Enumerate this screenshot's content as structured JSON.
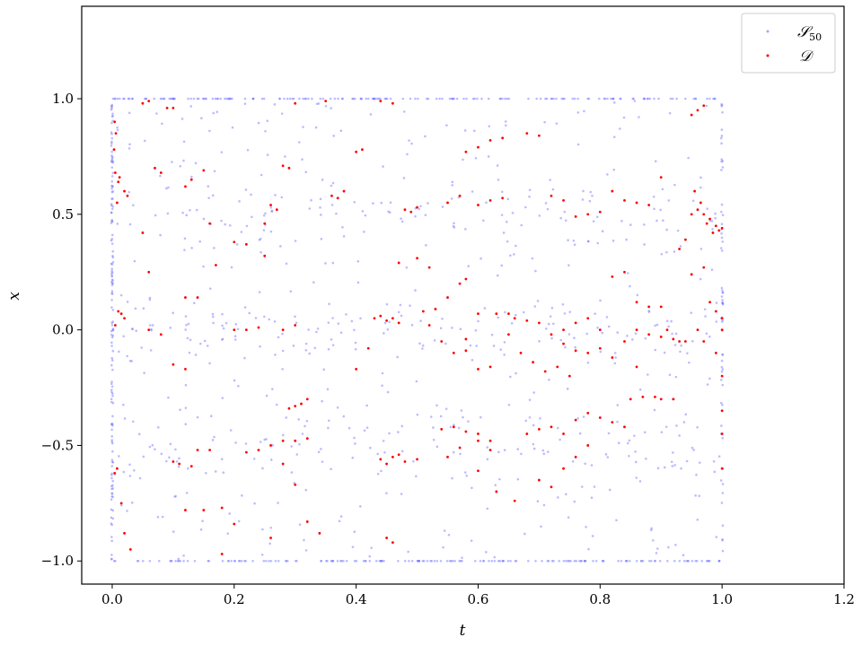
{
  "chart_data": {
    "type": "scatter",
    "title": "",
    "xlabel": "t",
    "ylabel": "x",
    "xlim": [
      -0.05,
      1.2
    ],
    "ylim": [
      -1.1,
      1.4
    ],
    "x_ticks": [
      0.0,
      0.2,
      0.4,
      0.6,
      0.8,
      1.0,
      1.2
    ],
    "x_tick_labels": [
      "0.0",
      "0.2",
      "0.4",
      "0.6",
      "0.8",
      "1.0",
      "1.2"
    ],
    "y_ticks": [
      -1.0,
      -0.5,
      0.0,
      0.5,
      1.0
    ],
    "y_tick_labels": [
      "−1.0",
      "−0.5",
      "0.0",
      "0.5",
      "1.0"
    ],
    "grid": false,
    "legend_position": "top-right",
    "series": [
      {
        "name": "S50",
        "legend_label": "𝒮",
        "legend_subscript": "50",
        "color": "#6a6aff",
        "alpha": 0.45,
        "point_groups": [
          {
            "kind": "vertical-edge",
            "x": 0.0,
            "y_range": [
              -1.0,
              1.0
            ],
            "count": 140
          },
          {
            "kind": "horizontal-edge",
            "y": 1.0,
            "x_range": [
              0.0,
              1.0
            ],
            "count": 170
          },
          {
            "kind": "horizontal-edge",
            "y": -1.0,
            "x_range": [
              0.0,
              1.0
            ],
            "count": 170
          },
          {
            "kind": "vertical-edge",
            "x": 1.0,
            "y_range": [
              -1.0,
              1.0
            ],
            "count": 60
          },
          {
            "kind": "band",
            "x_range": [
              0.0,
              1.0
            ],
            "y_center": 0.0,
            "spread": 0.06,
            "count": 120
          },
          {
            "kind": "band",
            "x_range": [
              0.0,
              1.0
            ],
            "y_center": 0.5,
            "spread": 0.08,
            "count": 90
          },
          {
            "kind": "band",
            "x_range": [
              0.0,
              1.0
            ],
            "y_center": -0.5,
            "spread": 0.08,
            "count": 90
          },
          {
            "kind": "uniform",
            "x_range": [
              0.0,
              1.0
            ],
            "y_range": [
              -1.0,
              1.0
            ],
            "count": 420
          }
        ]
      },
      {
        "name": "D",
        "legend_label": "𝒟",
        "color": "#ff0000",
        "points": [
          [
            0.005,
            0.68
          ],
          [
            0.01,
            0.64
          ],
          [
            0.012,
            0.66
          ],
          [
            0.02,
            0.6
          ],
          [
            0.025,
            0.58
          ],
          [
            0.008,
            0.55
          ],
          [
            0.004,
            0.9
          ],
          [
            0.006,
            0.85
          ],
          [
            0.003,
            0.78
          ],
          [
            0.005,
            0.02
          ],
          [
            0.01,
            0.08
          ],
          [
            0.015,
            0.07
          ],
          [
            0.02,
            0.05
          ],
          [
            0.004,
            -0.62
          ],
          [
            0.008,
            -0.6
          ],
          [
            0.015,
            -0.75
          ],
          [
            0.02,
            -0.88
          ],
          [
            0.03,
            -0.95
          ],
          [
            0.05,
            0.42
          ],
          [
            0.06,
            0.25
          ],
          [
            0.07,
            0.7
          ],
          [
            0.08,
            0.68
          ],
          [
            0.09,
            0.96
          ],
          [
            0.1,
            0.96
          ],
          [
            0.05,
            0.98
          ],
          [
            0.06,
            0.99
          ],
          [
            0.06,
            0.0
          ],
          [
            0.08,
            -0.02
          ],
          [
            0.1,
            -0.15
          ],
          [
            0.12,
            -0.17
          ],
          [
            0.12,
            0.62
          ],
          [
            0.13,
            0.65
          ],
          [
            0.15,
            0.69
          ],
          [
            0.12,
            0.14
          ],
          [
            0.14,
            0.14
          ],
          [
            0.11,
            -0.58
          ],
          [
            0.13,
            -0.59
          ],
          [
            0.14,
            -0.52
          ],
          [
            0.16,
            -0.52
          ],
          [
            0.1,
            -0.57
          ],
          [
            0.12,
            -0.78
          ],
          [
            0.15,
            -0.78
          ],
          [
            0.18,
            -0.77
          ],
          [
            0.2,
            -0.84
          ],
          [
            0.18,
            -0.97
          ],
          [
            0.16,
            0.46
          ],
          [
            0.17,
            0.28
          ],
          [
            0.2,
            0.38
          ],
          [
            0.22,
            0.37
          ],
          [
            0.2,
            0.0
          ],
          [
            0.22,
            0.0
          ],
          [
            0.24,
            0.01
          ],
          [
            0.25,
            0.46
          ],
          [
            0.26,
            0.54
          ],
          [
            0.27,
            0.52
          ],
          [
            0.28,
            0.71
          ],
          [
            0.29,
            0.7
          ],
          [
            0.25,
            0.32
          ],
          [
            0.28,
            0.0
          ],
          [
            0.3,
            0.02
          ],
          [
            0.28,
            -0.48
          ],
          [
            0.3,
            -0.48
          ],
          [
            0.32,
            -0.47
          ],
          [
            0.29,
            -0.34
          ],
          [
            0.3,
            -0.33
          ],
          [
            0.31,
            -0.32
          ],
          [
            0.32,
            -0.3
          ],
          [
            0.22,
            -0.53
          ],
          [
            0.24,
            -0.52
          ],
          [
            0.26,
            -0.5
          ],
          [
            0.28,
            -0.58
          ],
          [
            0.3,
            -0.67
          ],
          [
            0.32,
            -0.83
          ],
          [
            0.34,
            -0.88
          ],
          [
            0.26,
            -0.9
          ],
          [
            0.3,
            0.98
          ],
          [
            0.35,
            0.99
          ],
          [
            0.36,
            0.58
          ],
          [
            0.37,
            0.57
          ],
          [
            0.38,
            0.6
          ],
          [
            0.4,
            0.77
          ],
          [
            0.41,
            0.78
          ],
          [
            0.4,
            -0.17
          ],
          [
            0.42,
            -0.08
          ],
          [
            0.43,
            0.05
          ],
          [
            0.44,
            0.06
          ],
          [
            0.45,
            0.04
          ],
          [
            0.46,
            0.05
          ],
          [
            0.47,
            0.03
          ],
          [
            0.44,
            -0.56
          ],
          [
            0.45,
            -0.58
          ],
          [
            0.46,
            -0.55
          ],
          [
            0.47,
            -0.54
          ],
          [
            0.48,
            -0.57
          ],
          [
            0.5,
            -0.56
          ],
          [
            0.45,
            -0.9
          ],
          [
            0.46,
            -0.92
          ],
          [
            0.44,
            0.99
          ],
          [
            0.46,
            0.98
          ],
          [
            0.48,
            0.52
          ],
          [
            0.49,
            0.51
          ],
          [
            0.5,
            0.53
          ],
          [
            0.47,
            0.29
          ],
          [
            0.5,
            0.31
          ],
          [
            0.52,
            0.27
          ],
          [
            0.53,
            0.09
          ],
          [
            0.55,
            0.14
          ],
          [
            0.57,
            0.2
          ],
          [
            0.58,
            0.22
          ],
          [
            0.54,
            -0.05
          ],
          [
            0.56,
            -0.1
          ],
          [
            0.58,
            -0.09
          ],
          [
            0.6,
            -0.17
          ],
          [
            0.62,
            -0.16
          ],
          [
            0.54,
            -0.43
          ],
          [
            0.56,
            -0.42
          ],
          [
            0.58,
            -0.44
          ],
          [
            0.6,
            -0.45
          ],
          [
            0.62,
            -0.48
          ],
          [
            0.55,
            -0.55
          ],
          [
            0.57,
            -0.51
          ],
          [
            0.6,
            -0.61
          ],
          [
            0.63,
            -0.7
          ],
          [
            0.66,
            -0.74
          ],
          [
            0.55,
            0.55
          ],
          [
            0.57,
            0.58
          ],
          [
            0.6,
            0.54
          ],
          [
            0.62,
            0.56
          ],
          [
            0.64,
            0.57
          ],
          [
            0.58,
            0.77
          ],
          [
            0.6,
            0.79
          ],
          [
            0.62,
            0.82
          ],
          [
            0.64,
            0.83
          ],
          [
            0.68,
            0.85
          ],
          [
            0.7,
            0.84
          ],
          [
            0.65,
            0.07
          ],
          [
            0.66,
            0.05
          ],
          [
            0.68,
            0.04
          ],
          [
            0.7,
            0.03
          ],
          [
            0.72,
            -0.02
          ],
          [
            0.74,
            -0.06
          ],
          [
            0.76,
            -0.09
          ],
          [
            0.78,
            -0.1
          ],
          [
            0.8,
            -0.08
          ],
          [
            0.68,
            -0.45
          ],
          [
            0.7,
            -0.43
          ],
          [
            0.72,
            -0.42
          ],
          [
            0.74,
            -0.45
          ],
          [
            0.76,
            -0.39
          ],
          [
            0.78,
            -0.36
          ],
          [
            0.8,
            -0.38
          ],
          [
            0.82,
            -0.4
          ],
          [
            0.84,
            -0.42
          ],
          [
            0.85,
            -0.3
          ],
          [
            0.87,
            -0.29
          ],
          [
            0.89,
            -0.29
          ],
          [
            0.9,
            -0.3
          ],
          [
            0.92,
            -0.3
          ],
          [
            0.72,
            0.58
          ],
          [
            0.74,
            0.56
          ],
          [
            0.76,
            0.49
          ],
          [
            0.78,
            0.5
          ],
          [
            0.8,
            0.51
          ],
          [
            0.82,
            0.6
          ],
          [
            0.84,
            0.56
          ],
          [
            0.86,
            0.55
          ],
          [
            0.88,
            0.54
          ],
          [
            0.82,
            0.23
          ],
          [
            0.84,
            0.25
          ],
          [
            0.86,
            0.12
          ],
          [
            0.88,
            0.1
          ],
          [
            0.9,
            0.1
          ],
          [
            0.86,
            0.0
          ],
          [
            0.88,
            -0.02
          ],
          [
            0.9,
            -0.03
          ],
          [
            0.92,
            -0.04
          ],
          [
            0.94,
            -0.05
          ],
          [
            0.7,
            -0.65
          ],
          [
            0.72,
            -0.68
          ],
          [
            0.74,
            -0.6
          ],
          [
            0.76,
            -0.55
          ],
          [
            0.78,
            -0.5
          ],
          [
            0.9,
            0.66
          ],
          [
            0.93,
            0.35
          ],
          [
            0.94,
            0.39
          ],
          [
            0.95,
            0.5
          ],
          [
            0.96,
            0.52
          ],
          [
            0.97,
            0.5
          ],
          [
            0.98,
            0.48
          ],
          [
            0.99,
            0.45
          ],
          [
            0.995,
            0.43
          ],
          [
            1.0,
            0.44
          ],
          [
            0.985,
            0.42
          ],
          [
            0.975,
            0.46
          ],
          [
            0.965,
            0.55
          ],
          [
            0.955,
            0.6
          ],
          [
            0.95,
            0.93
          ],
          [
            0.96,
            0.95
          ],
          [
            0.97,
            0.97
          ],
          [
            0.96,
            0.0
          ],
          [
            0.97,
            -0.05
          ],
          [
            0.99,
            -0.1
          ],
          [
            1.0,
            0.0
          ],
          [
            1.0,
            0.05
          ],
          [
            1.0,
            -0.2
          ],
          [
            1.0,
            -0.35
          ],
          [
            1.0,
            -0.45
          ],
          [
            1.0,
            -0.6
          ],
          [
            0.98,
            0.12
          ],
          [
            0.99,
            0.08
          ],
          [
            0.95,
            0.24
          ],
          [
            0.97,
            0.27
          ],
          [
            0.93,
            -0.05
          ],
          [
            0.91,
            0.0
          ],
          [
            0.6,
            -0.48
          ],
          [
            0.62,
            -0.52
          ],
          [
            0.58,
            -0.04
          ],
          [
            0.52,
            0.02
          ],
          [
            0.51,
            0.08
          ],
          [
            0.6,
            0.07
          ],
          [
            0.63,
            0.07
          ],
          [
            0.65,
            -0.02
          ],
          [
            0.67,
            -0.1
          ],
          [
            0.69,
            -0.14
          ],
          [
            0.71,
            -0.18
          ],
          [
            0.73,
            -0.16
          ],
          [
            0.75,
            -0.2
          ],
          [
            0.8,
            0.0
          ],
          [
            0.82,
            -0.12
          ],
          [
            0.84,
            -0.05
          ],
          [
            0.86,
            -0.16
          ],
          [
            0.74,
            0.0
          ],
          [
            0.76,
            0.03
          ],
          [
            0.78,
            0.05
          ]
        ]
      }
    ]
  }
}
